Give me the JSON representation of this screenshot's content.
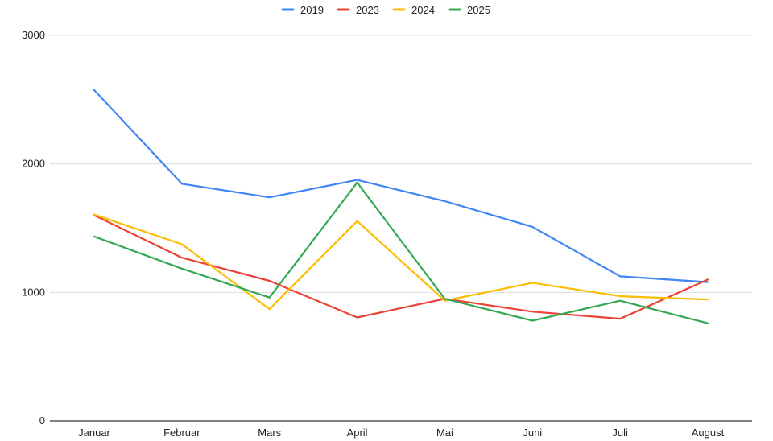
{
  "chart_data": {
    "type": "line",
    "categories": [
      "Januar",
      "Februar",
      "Mars",
      "April",
      "Mai",
      "Juni",
      "Juli",
      "August"
    ],
    "series": [
      {
        "name": "2019",
        "color": "#4285F4",
        "values": [
          2575,
          1845,
          1740,
          1875,
          1710,
          1510,
          1125,
          1080
        ]
      },
      {
        "name": "2023",
        "color": "#EA4335",
        "values": [
          1600,
          1270,
          1090,
          805,
          950,
          850,
          795,
          1100
        ]
      },
      {
        "name": "2024",
        "color": "#FBBC04",
        "values": [
          1605,
          1375,
          870,
          1555,
          935,
          1075,
          970,
          945
        ]
      },
      {
        "name": "2025",
        "color": "#34A853",
        "values": [
          1435,
          1185,
          960,
          1855,
          950,
          780,
          935,
          760
        ]
      }
    ],
    "yticks": [
      "0",
      "1000",
      "2000",
      "3000"
    ],
    "ylim": [
      0,
      3000
    ],
    "grid": true,
    "legend_position": "top-center",
    "title": "",
    "xlabel": "",
    "ylabel": ""
  }
}
